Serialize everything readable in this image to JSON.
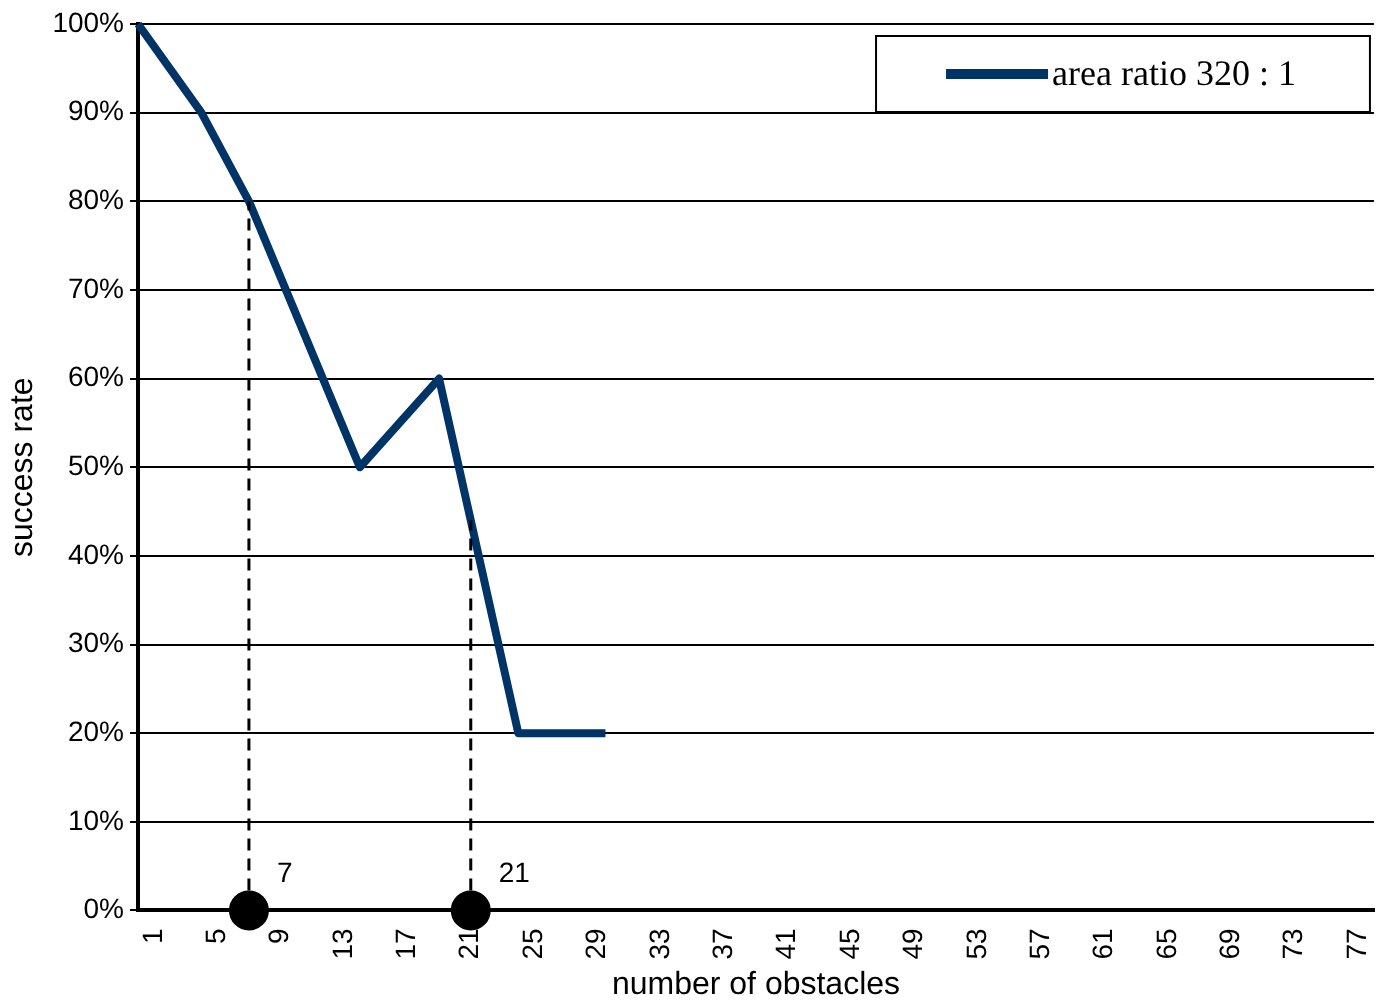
{
  "chart_data": {
    "type": "line",
    "xlabel": "number of obstacles",
    "ylabel": "success rate",
    "x": [
      0,
      4,
      7,
      14,
      19,
      24,
      29.5
    ],
    "series": [
      {
        "name": "area ratio 320 : 1",
        "color": "#003366",
        "values": [
          100,
          90,
          80,
          50,
          60,
          20,
          20
        ]
      },
      {
        "type": "scatter",
        "x": [
          7,
          21
        ],
        "values": [
          0,
          0
        ],
        "color": "#000000",
        "marker": "circle"
      }
    ],
    "xlim": [
      0,
      78
    ],
    "xticks": [
      1,
      5,
      9,
      13,
      17,
      21,
      25,
      29,
      33,
      37,
      41,
      45,
      49,
      53,
      57,
      61,
      65,
      69,
      73,
      77
    ],
    "ylim": [
      0,
      100
    ],
    "yticks": [
      {
        "value": 0,
        "label": "0%"
      },
      {
        "value": 10,
        "label": "10%"
      },
      {
        "value": 20,
        "label": "20%"
      },
      {
        "value": 30,
        "label": "30%"
      },
      {
        "value": 40,
        "label": "40%"
      },
      {
        "value": 50,
        "label": "50%"
      },
      {
        "value": 60,
        "label": "60%"
      },
      {
        "value": 70,
        "label": "70%"
      },
      {
        "value": 80,
        "label": "80%"
      },
      {
        "value": 90,
        "label": "90%"
      },
      {
        "value": 100,
        "label": "100%"
      }
    ],
    "ref_lines": [
      {
        "axis": "x",
        "value": 7,
        "label": "7",
        "line_style": "dashed",
        "color": "#000000"
      },
      {
        "axis": "x",
        "value": 21,
        "label": "21",
        "line_style": "dashed",
        "color": "#000000"
      }
    ],
    "grid": "y",
    "legend": "top right",
    "marker": "none",
    "line_style": "solid"
  }
}
